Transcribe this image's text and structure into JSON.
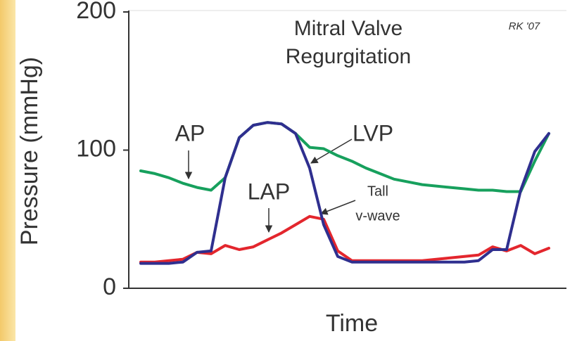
{
  "chart_data": {
    "type": "line",
    "title": [
      "Mitral Valve",
      "Regurgitation"
    ],
    "credit": "RK '07",
    "xlabel": "Time",
    "ylabel": "Pressure (mmHg)",
    "ylim": [
      0,
      200
    ],
    "yticks": [
      0,
      100,
      200
    ],
    "categories": [
      null,
      null,
      null,
      null,
      null,
      null,
      null,
      null,
      null,
      null,
      null,
      null,
      null,
      null,
      null,
      null,
      null,
      null,
      null,
      null,
      null,
      null,
      null,
      null,
      null,
      null,
      null,
      null,
      null,
      null
    ],
    "series": [
      {
        "name": "AP",
        "color": "#17a05d",
        "values": [
          85,
          83,
          80,
          76,
          73,
          71,
          80,
          109,
          118,
          120,
          119,
          112,
          102,
          101,
          96,
          92,
          87,
          83,
          79,
          77,
          75,
          74,
          73,
          72,
          71,
          71,
          70,
          70,
          92,
          112
        ]
      },
      {
        "name": "LAP",
        "color": "#e3262d",
        "values": [
          19,
          19,
          20,
          21,
          26,
          25,
          31,
          28,
          30,
          35,
          40,
          46,
          52,
          50,
          27,
          20,
          20,
          20,
          20,
          20,
          20,
          21,
          22,
          23,
          24,
          30,
          27,
          31,
          25,
          29
        ]
      },
      {
        "name": "LVP",
        "color": "#2f2f8f",
        "values": [
          18,
          18,
          18,
          19,
          26,
          27,
          80,
          109,
          118,
          120,
          119,
          112,
          87,
          46,
          23,
          19,
          19,
          19,
          19,
          19,
          19,
          19,
          19,
          19,
          20,
          28,
          28,
          71,
          99,
          112
        ]
      }
    ],
    "annotation": [
      "Tall",
      "v-wave"
    ]
  }
}
